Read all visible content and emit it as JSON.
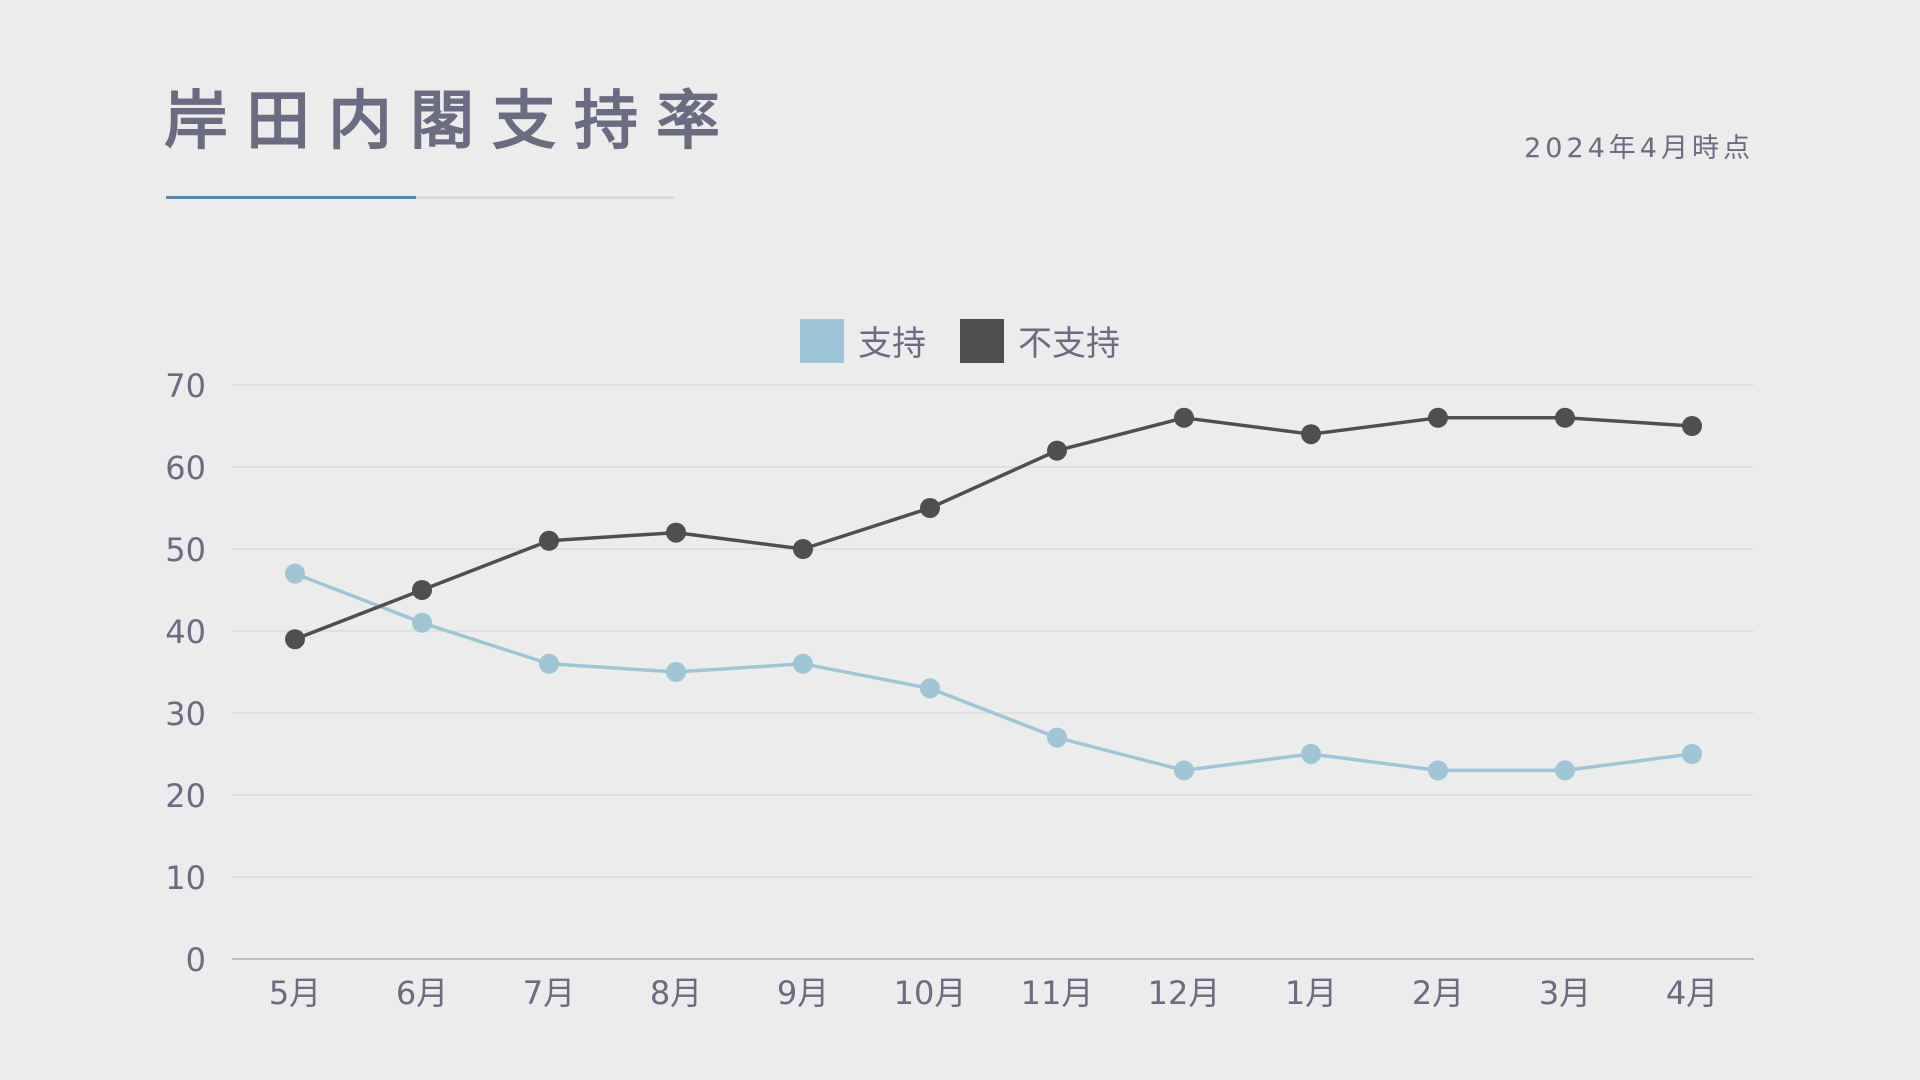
{
  "header": {
    "title": "岸田内閣支持率",
    "date_note": "2024年4月時点"
  },
  "colors": {
    "support": "#9fc6d6",
    "nonsupport": "#4f4f4f",
    "text": "#6b6c82",
    "accent": "#5a88a8"
  },
  "chart_data": {
    "type": "line",
    "categories": [
      "5月",
      "6月",
      "7月",
      "8月",
      "9月",
      "10月",
      "11月",
      "12月",
      "1月",
      "2月",
      "3月",
      "4月"
    ],
    "series": [
      {
        "name": "支持",
        "color": "#9fc6d6",
        "values": [
          47,
          41,
          36,
          35,
          36,
          33,
          27,
          23,
          25,
          23,
          23,
          25
        ]
      },
      {
        "name": "不支持",
        "color": "#4f4f4f",
        "values": [
          39,
          45,
          51,
          52,
          50,
          55,
          62,
          66,
          64,
          66,
          66,
          65
        ]
      }
    ],
    "ylim": [
      0,
      70
    ],
    "yticks": [
      0,
      10,
      20,
      30,
      40,
      50,
      60,
      70
    ],
    "grid": true,
    "legend_position": "top-center"
  }
}
